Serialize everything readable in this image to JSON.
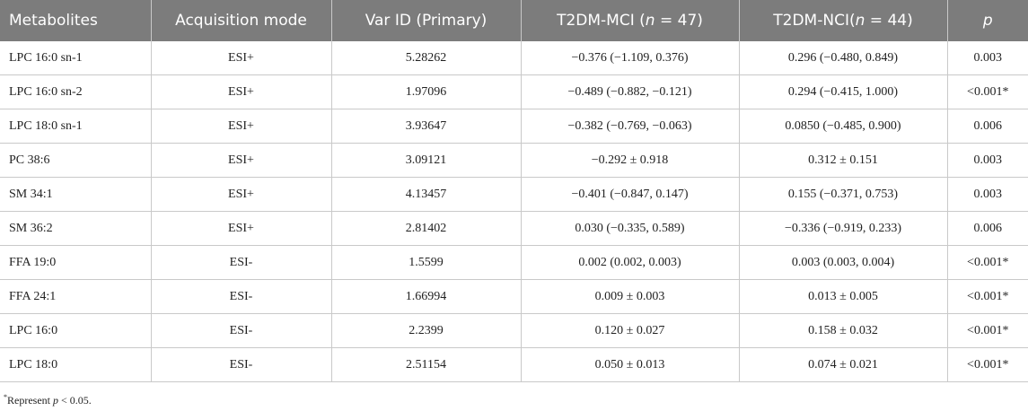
{
  "table": {
    "headers": [
      "Metabolites",
      "Acquisition mode",
      "Var ID (Primary)",
      "T2DM-MCI",
      "T2DM-NCI",
      "p"
    ],
    "header_counts": {
      "mci_prefix": " (",
      "mci_n": "n",
      "mci_value": " = 47)",
      "nci_prefix": "(",
      "nci_n": "n",
      "nci_value": " = 44)"
    },
    "rows": [
      [
        "LPC 16:0 sn-1",
        "ESI+",
        "5.28262",
        "−0.376 (−1.109, 0.376)",
        "0.296 (−0.480, 0.849)",
        "0.003"
      ],
      [
        "LPC 16:0 sn-2",
        "ESI+",
        "1.97096",
        "−0.489 (−0.882, −0.121)",
        "0.294 (−0.415, 1.000)",
        "<0.001*"
      ],
      [
        "LPC 18:0 sn-1",
        "ESI+",
        "3.93647",
        "−0.382 (−0.769, −0.063)",
        "0.0850 (−0.485, 0.900)",
        "0.006"
      ],
      [
        "PC 38:6",
        "ESI+",
        "3.09121",
        "−0.292 ± 0.918",
        "0.312 ± 0.151",
        "0.003"
      ],
      [
        "SM 34:1",
        "ESI+",
        "4.13457",
        "−0.401 (−0.847, 0.147)",
        "0.155 (−0.371, 0.753)",
        "0.003"
      ],
      [
        "SM 36:2",
        "ESI+",
        "2.81402",
        "0.030 (−0.335, 0.589)",
        "−0.336 (−0.919, 0.233)",
        "0.006"
      ],
      [
        "FFA 19:0",
        "ESI-",
        "1.5599",
        "0.002 (0.002, 0.003)",
        "0.003 (0.003, 0.004)",
        "<0.001*"
      ],
      [
        "FFA 24:1",
        "ESI-",
        "1.66994",
        "0.009 ± 0.003",
        "0.013 ± 0.005",
        "<0.001*"
      ],
      [
        "LPC 16:0",
        "ESI-",
        "2.2399",
        "0.120 ± 0.027",
        "0.158 ± 0.032",
        "<0.001*"
      ],
      [
        "LPC 18:0",
        "ESI-",
        "2.51154",
        "0.050 ± 0.013",
        "0.074 ± 0.021",
        "<0.001*"
      ]
    ]
  },
  "footnote": {
    "marker": "*",
    "text_before": "Represent ",
    "p_symbol": "p",
    "text_after": " < 0.05."
  }
}
